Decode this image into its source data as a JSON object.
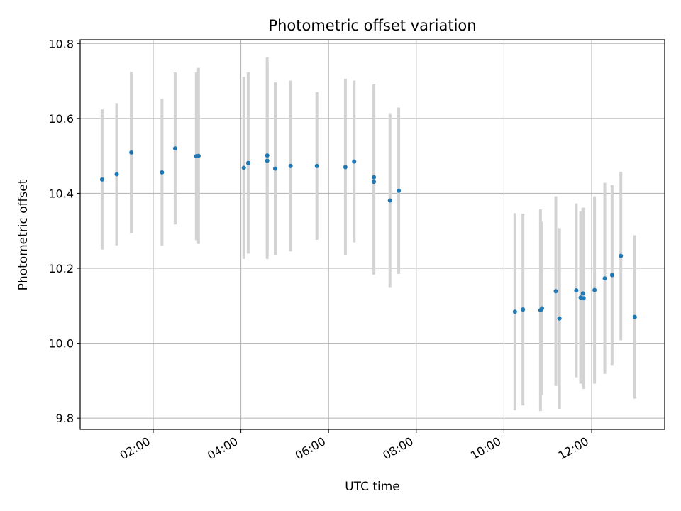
{
  "chart_data": {
    "type": "scatter",
    "title": "Photometric offset variation",
    "xlabel": "UTC time",
    "ylabel": "Photometric offset",
    "x_axis_kind": "time",
    "xlim": [
      "00:20",
      "13:40"
    ],
    "ylim": [
      9.77,
      10.81
    ],
    "x_ticks": [
      "02:00",
      "04:00",
      "06:00",
      "08:00",
      "10:00",
      "12:00"
    ],
    "y_ticks": [
      9.8,
      10.0,
      10.2,
      10.4,
      10.6,
      10.8
    ],
    "grid": true,
    "colors": {
      "point": "#1f77b4",
      "errorbar": "#d3d3d3",
      "grid": "#b0b0b0"
    },
    "series": [
      {
        "points": [
          {
            "x": "00:50",
            "y": 10.437,
            "err": 0.187
          },
          {
            "x": "01:10",
            "y": 10.451,
            "err": 0.19
          },
          {
            "x": "01:30",
            "y": 10.509,
            "err": 0.215
          },
          {
            "x": "02:12",
            "y": 10.456,
            "err": 0.196
          },
          {
            "x": "02:30",
            "y": 10.52,
            "err": 0.203
          },
          {
            "x": "02:59",
            "y": 10.499,
            "err": 0.224
          },
          {
            "x": "03:02",
            "y": 10.5,
            "err": 0.235
          },
          {
            "x": "04:04",
            "y": 10.468,
            "err": 0.243
          },
          {
            "x": "04:10",
            "y": 10.481,
            "err": 0.242
          },
          {
            "x": "04:36",
            "y": 10.501,
            "err": 0.262
          },
          {
            "x": "04:36",
            "y": 10.487,
            "err": 0.262
          },
          {
            "x": "04:47",
            "y": 10.466,
            "err": 0.23
          },
          {
            "x": "05:08",
            "y": 10.473,
            "err": 0.228
          },
          {
            "x": "05:44",
            "y": 10.473,
            "err": 0.197
          },
          {
            "x": "06:23",
            "y": 10.47,
            "err": 0.236
          },
          {
            "x": "06:35",
            "y": 10.485,
            "err": 0.216
          },
          {
            "x": "07:02",
            "y": 10.443,
            "err": 0.248
          },
          {
            "x": "07:02",
            "y": 10.431,
            "err": 0.248
          },
          {
            "x": "07:24",
            "y": 10.381,
            "err": 0.233
          },
          {
            "x": "07:36",
            "y": 10.407,
            "err": 0.222
          },
          {
            "x": "10:15",
            "y": 10.084,
            "err": 0.263
          },
          {
            "x": "10:26",
            "y": 10.09,
            "err": 0.256
          },
          {
            "x": "10:50",
            "y": 10.088,
            "err": 0.269
          },
          {
            "x": "10:52",
            "y": 10.093,
            "err": 0.231
          },
          {
            "x": "11:11",
            "y": 10.139,
            "err": 0.253
          },
          {
            "x": "11:16",
            "y": 10.066,
            "err": 0.241
          },
          {
            "x": "11:39",
            "y": 10.141,
            "err": 0.232
          },
          {
            "x": "11:45",
            "y": 10.122,
            "err": 0.23
          },
          {
            "x": "11:48",
            "y": 10.133,
            "err": 0.228
          },
          {
            "x": "11:49",
            "y": 10.12,
            "err": 0.242
          },
          {
            "x": "12:04",
            "y": 10.142,
            "err": 0.25
          },
          {
            "x": "12:18",
            "y": 10.173,
            "err": 0.255
          },
          {
            "x": "12:28",
            "y": 10.182,
            "err": 0.24
          },
          {
            "x": "12:40",
            "y": 10.233,
            "err": 0.225
          },
          {
            "x": "12:59",
            "y": 10.07,
            "err": 0.218
          }
        ]
      }
    ]
  }
}
